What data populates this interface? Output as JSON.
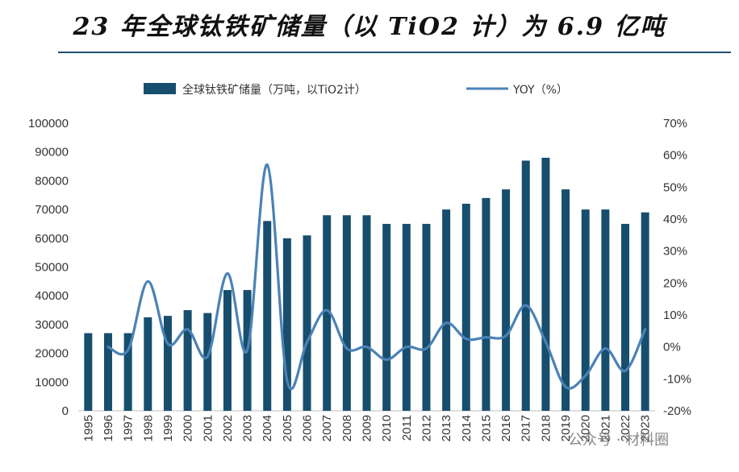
{
  "page": {
    "title": "23 年全球钛铁矿储量（以 TiO2 计）为 6.9 亿吨"
  },
  "watermark": "公众号 · 材料圈",
  "chart_data": {
    "type": "bar",
    "title": "",
    "categories": [
      "1995",
      "1996",
      "1997",
      "1998",
      "1999",
      "2000",
      "2001",
      "2002",
      "2003",
      "2004",
      "2005",
      "2006",
      "2007",
      "2008",
      "2009",
      "2010",
      "2011",
      "2012",
      "2013",
      "2014",
      "2015",
      "2016",
      "2017",
      "2018",
      "2019",
      "2020",
      "2021",
      "2022",
      "2023"
    ],
    "series": [
      {
        "name": "全球钛铁矿储量（万吨，以TiO2计）",
        "type": "bar",
        "axis": "left",
        "color": "#174e6e",
        "values": [
          27000,
          27000,
          27000,
          32500,
          33000,
          35000,
          34000,
          42000,
          42000,
          66000,
          60000,
          61000,
          68000,
          68000,
          68000,
          65000,
          65000,
          65000,
          70000,
          72000,
          74000,
          77000,
          87000,
          88000,
          77000,
          70000,
          70000,
          65000,
          69000
        ]
      },
      {
        "name": "YOY（%）",
        "type": "line",
        "axis": "right",
        "color": "#4a82b6",
        "values": [
          null,
          0,
          -1,
          20.5,
          1,
          5.5,
          -3,
          23,
          -1,
          57,
          -10.5,
          1.5,
          11.5,
          -0.5,
          0,
          -4,
          0,
          -0.5,
          7.5,
          2.5,
          3,
          3.5,
          13,
          1.5,
          -12.5,
          -9,
          -0.5,
          -7.5,
          5.5
        ]
      }
    ],
    "y_left": {
      "ylim": [
        0,
        100000
      ],
      "ticks": [
        "0",
        "10000",
        "20000",
        "30000",
        "40000",
        "50000",
        "60000",
        "70000",
        "80000",
        "90000",
        "100000"
      ]
    },
    "y_right": {
      "ylim": [
        -20,
        70
      ],
      "ticks": [
        "-20%",
        "-10%",
        "0%",
        "10%",
        "20%",
        "30%",
        "40%",
        "50%",
        "60%",
        "70%"
      ]
    },
    "legend_position": "top-center",
    "grid": false
  }
}
